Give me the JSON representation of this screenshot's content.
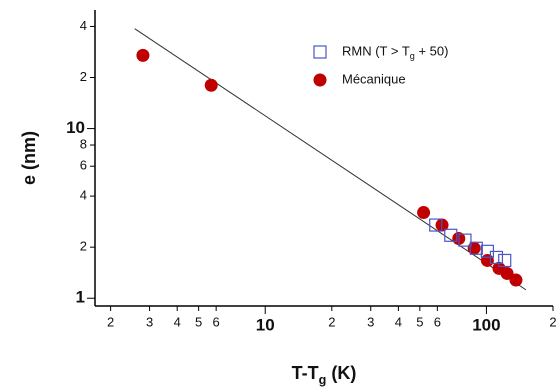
{
  "chart_data": {
    "type": "scatter",
    "xlabel": "T-Tg (K)",
    "ylabel": "e (nm)",
    "xscale": "log",
    "yscale": "log",
    "xlim": [
      1.7,
      200
    ],
    "ylim": [
      0.9,
      50
    ],
    "xticks": [
      2,
      3,
      4,
      5,
      6,
      10,
      {
        "value": 20,
        "label": "2"
      },
      {
        "value": 30,
        "label": "3"
      },
      {
        "value": 40,
        "label": "4"
      },
      {
        "value": 50,
        "label": "5"
      },
      {
        "value": 60,
        "label": "6"
      },
      100,
      {
        "value": 200,
        "label": "2"
      }
    ],
    "yticks": [
      1,
      2,
      4,
      6,
      8,
      10,
      {
        "value": 20,
        "label": "2"
      },
      {
        "value": 40,
        "label": "4"
      }
    ],
    "major_ticks": [
      10,
      100
    ],
    "legend": "upper right",
    "series": [
      {
        "name": "RMN (T > Tg + 50)",
        "marker": "square",
        "color": "#4a55c8",
        "x": [
          59,
          69,
          80,
          90,
          101,
          111,
          121
        ],
        "values": [
          2.7,
          2.35,
          2.2,
          1.97,
          1.89,
          1.74,
          1.67
        ]
      },
      {
        "name": "Mécanique",
        "marker": "circle",
        "color": "#c00000",
        "x": [
          2.8,
          5.7,
          52,
          63,
          75,
          88,
          101,
          114,
          124,
          136
        ],
        "values": [
          27,
          18,
          3.2,
          2.7,
          2.25,
          1.97,
          1.67,
          1.5,
          1.4,
          1.28
        ]
      }
    ],
    "fit_line": {
      "color": "#333333",
      "x": [
        2.57,
        151
      ],
      "values": [
        38.8,
        1.12
      ]
    }
  }
}
